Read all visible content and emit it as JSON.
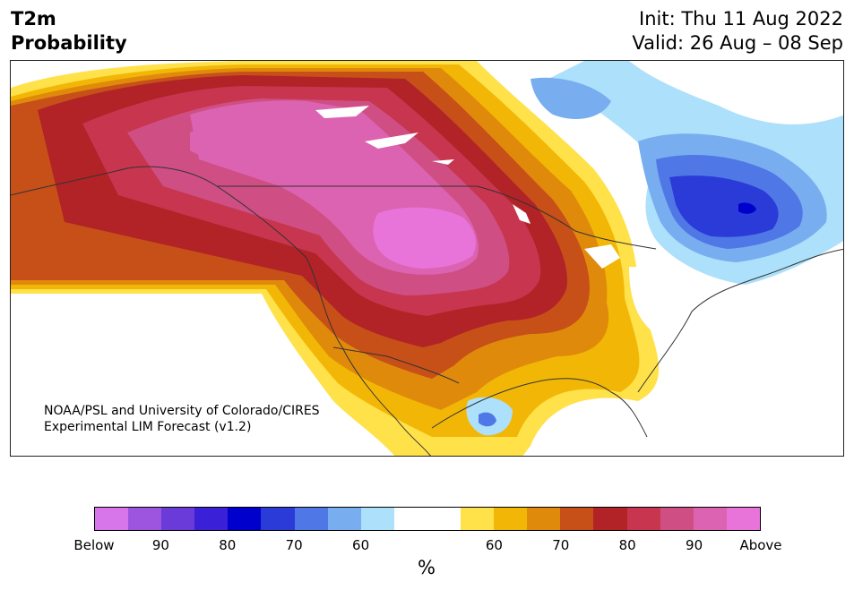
{
  "header": {
    "title": "T2m\nProbability",
    "init": "Init: Thu 11 Aug 2022",
    "valid": "Valid: 26 Aug – 08 Sep"
  },
  "map": {
    "credit_line1": "NOAA/PSL and University of Colorado/CIRES",
    "credit_line2": "Experimental LIM Forecast (v1.2)"
  },
  "colorbar": {
    "colors": [
      "#d676ea",
      "#9d55e0",
      "#6a3bd9",
      "#3a20d6",
      "#0000cd",
      "#2a3bd8",
      "#5077e6",
      "#78aef0",
      "#ade0fb",
      "#ffffff",
      "#ffffff",
      "#ffe14a",
      "#f2b706",
      "#e08a0c",
      "#c65018",
      "#b12327",
      "#c7354f",
      "#cf4f84",
      "#dc63b1",
      "#e874da"
    ],
    "ticks": [
      "Below",
      "90",
      "80",
      "70",
      "60",
      "60",
      "70",
      "80",
      "90",
      "Above"
    ],
    "unit": "%"
  }
}
